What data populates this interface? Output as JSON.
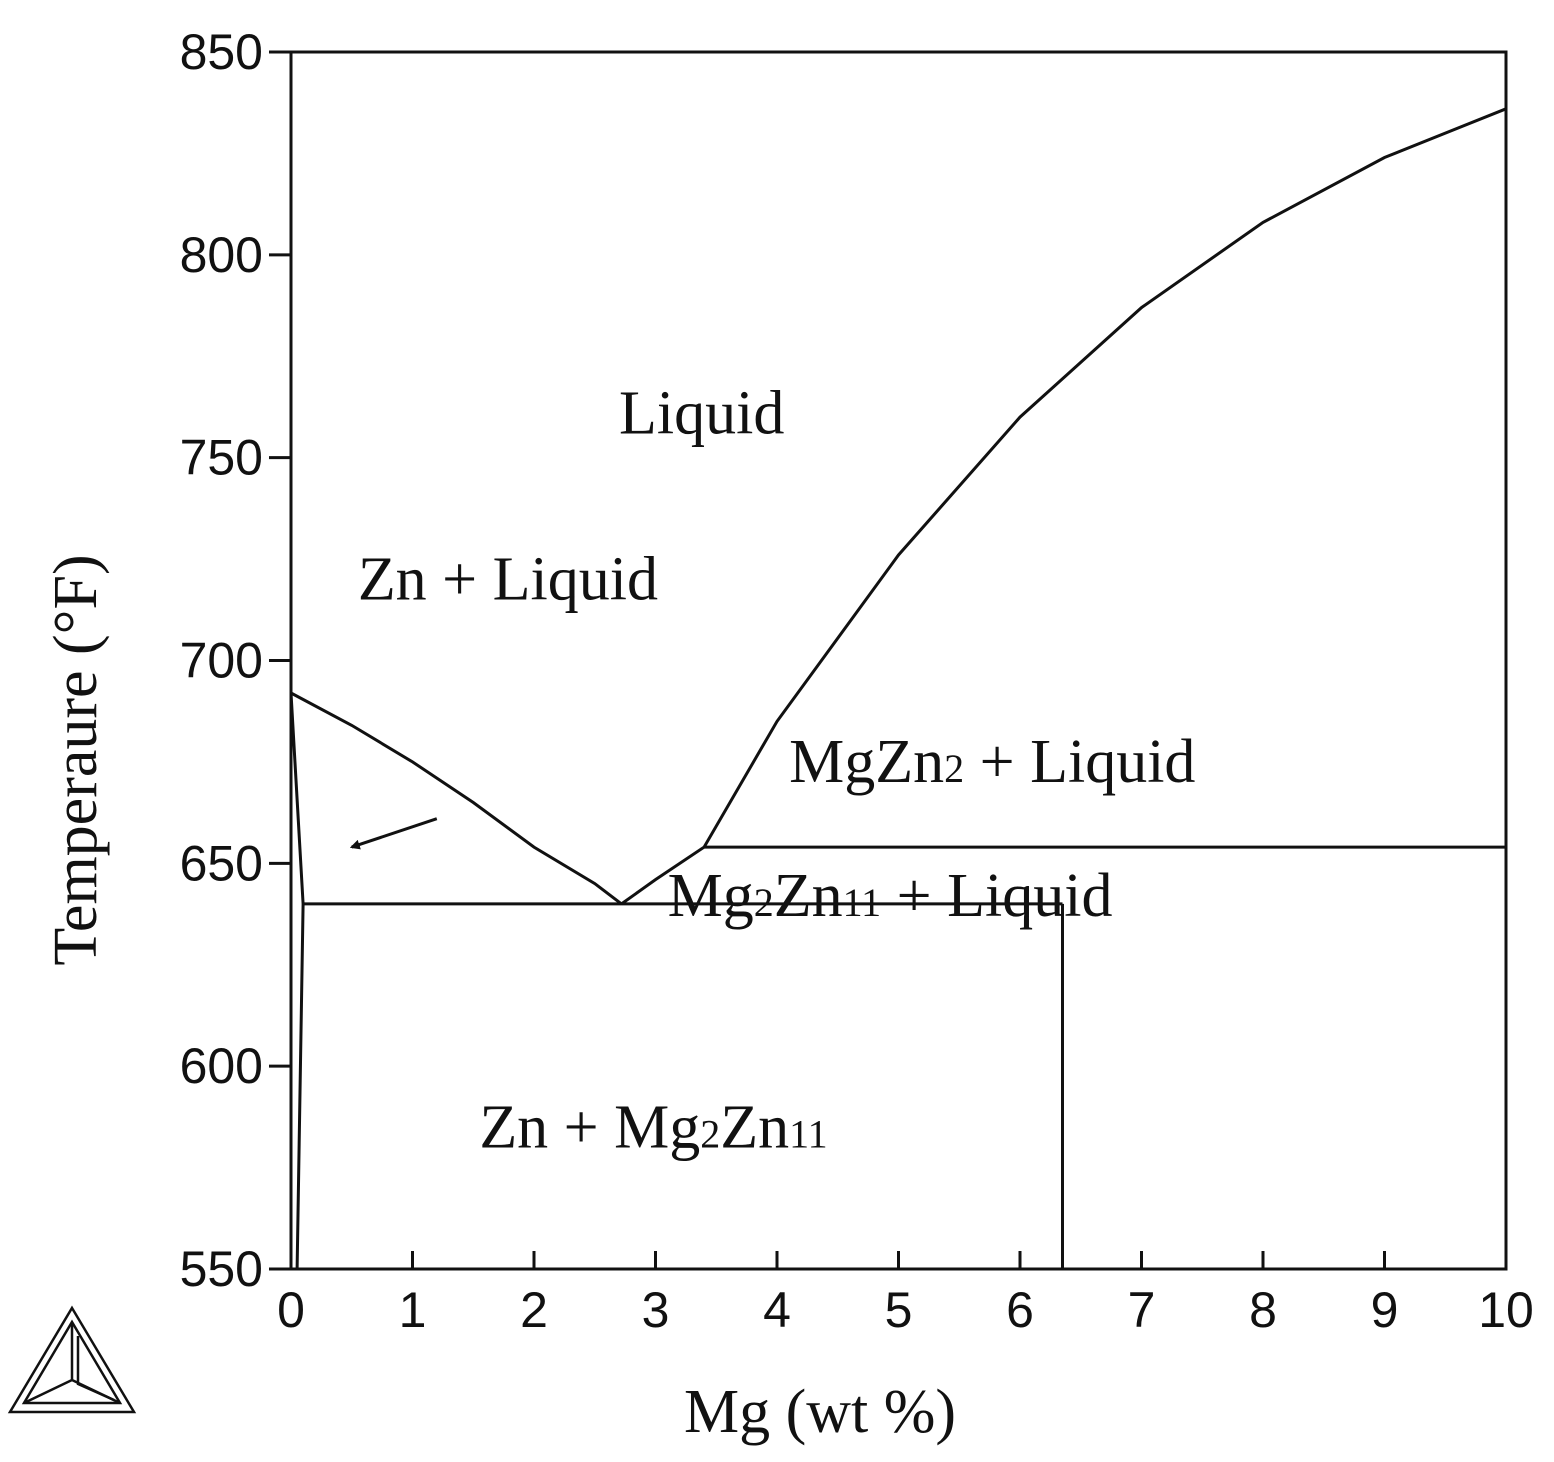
{
  "chart_data": {
    "type": "line",
    "title": "",
    "xlabel": "Mg (wt %)",
    "ylabel": "Temperaure (°F)",
    "xlim": [
      0,
      10
    ],
    "ylim": [
      550,
      850
    ],
    "x_ticks": [
      "0",
      "1",
      "2",
      "3",
      "4",
      "5",
      "6",
      "7",
      "8",
      "9",
      "10"
    ],
    "y_ticks": [
      "550",
      "600",
      "650",
      "700",
      "750",
      "800",
      "850"
    ],
    "grid": false,
    "series": [
      {
        "points": [
          [
            0,
            692
          ],
          [
            0.5,
            684
          ],
          [
            1.0,
            675
          ],
          [
            1.5,
            665
          ],
          [
            2.0,
            654
          ],
          [
            2.5,
            645
          ],
          [
            2.72,
            640
          ]
        ]
      },
      {
        "points": [
          [
            2.72,
            640
          ],
          [
            3.0,
            646
          ],
          [
            3.4,
            654
          ],
          [
            4.0,
            685
          ],
          [
            5.0,
            726
          ],
          [
            6.0,
            760
          ],
          [
            7.0,
            787
          ],
          [
            8.0,
            808
          ],
          [
            9.0,
            824
          ],
          [
            10.0,
            836
          ]
        ]
      },
      {
        "points": [
          [
            0.1,
            640
          ],
          [
            6.35,
            640
          ]
        ]
      },
      {
        "points": [
          [
            3.4,
            654
          ],
          [
            10,
            654
          ]
        ]
      },
      {
        "points": [
          [
            6.35,
            640
          ],
          [
            6.35,
            550
          ]
        ]
      },
      {
        "points": [
          [
            0,
            692
          ],
          [
            0.1,
            640
          ],
          [
            0.05,
            550
          ]
        ]
      }
    ],
    "annotations": [
      {
        "x": 0.55,
        "y": 715,
        "parts": [
          {
            "t": "Zn + Liquid",
            "sub": false
          }
        ]
      },
      {
        "x": 4.1,
        "y": 670,
        "parts": [
          {
            "t": "MgZn",
            "sub": false
          },
          {
            "t": "2",
            "sub": true
          },
          {
            "t": " + Liquid",
            "sub": false
          }
        ]
      },
      {
        "x": 3.1,
        "y": 637,
        "parts": [
          {
            "t": "Mg",
            "sub": false
          },
          {
            "t": "2",
            "sub": true
          },
          {
            "t": "Zn",
            "sub": false
          },
          {
            "t": "11",
            "sub": true
          },
          {
            "t": " + Liquid",
            "sub": false
          }
        ]
      },
      {
        "x": 2.7,
        "y": 756,
        "parts": [
          {
            "t": "Liquid",
            "sub": false
          }
        ]
      },
      {
        "x": 1.55,
        "y": 580,
        "parts": [
          {
            "t": "Zn + Mg",
            "sub": false
          },
          {
            "t": "2",
            "sub": true
          },
          {
            "t": "Zn",
            "sub": false
          },
          {
            "t": "11",
            "sub": true
          }
        ]
      }
    ],
    "arrow": {
      "from": [
        1.2,
        661
      ],
      "to": [
        0.5,
        654
      ]
    }
  }
}
